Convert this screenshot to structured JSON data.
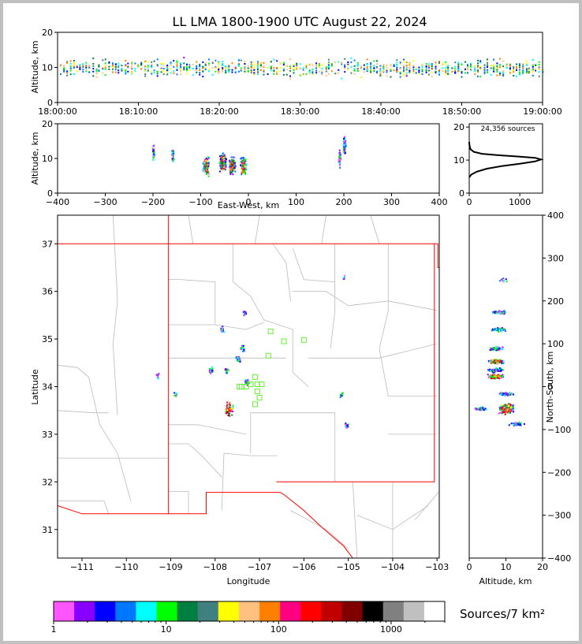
{
  "chart_data": {
    "type": "scatter",
    "title": "LL LMA 1800-1900 UTC August 22, 2024",
    "colors": {
      "bin_1": "#ff55ff",
      "bin_2": "#8800ff",
      "bin_3": "#0000ff",
      "bin_4": "#0077ff",
      "bin_5": "#00ffff",
      "bin_6": "#00ff00",
      "bin_7": "#008040",
      "bin_8": "#408080",
      "bin_9": "#ffff00",
      "bin_10": "#ffc080",
      "bin_11": "#ff8000",
      "bin_12": "#ff0080",
      "bin_13": "#ff0000",
      "bin_14": "#c00000",
      "bin_15": "#800000",
      "bin_16": "#000000",
      "bin_17": "#808080",
      "bin_18": "#c0c0c0",
      "bin_19": "#ffffff",
      "state_border": "#ff0000",
      "county_border": "#bbbbbb",
      "box_marker": "#66ee33"
    },
    "time_height": {
      "xlabel": "",
      "ylabel": "Altitude, km",
      "x_ticks": [
        "18:00:00",
        "18:10:00",
        "18:20:00",
        "18:30:00",
        "18:40:00",
        "18:50:00",
        "19:00:00"
      ],
      "y_ticks": [
        "0",
        "10",
        "20"
      ],
      "ylim": [
        0,
        20
      ]
    },
    "ew_height": {
      "xlabel": "East-West, km",
      "ylabel": "Altitude, km",
      "x_ticks": [
        "−400",
        "−300",
        "−200",
        "−100",
        "0",
        "100",
        "200",
        "300",
        "400"
      ],
      "y_ticks": [
        "0",
        "10",
        "20"
      ],
      "xlim": [
        -400,
        400
      ],
      "ylim": [
        0,
        20
      ],
      "clusters": [
        {
          "x": -200,
          "z": 12,
          "count": 40
        },
        {
          "x": -160,
          "z": 11,
          "count": 30
        },
        {
          "x": -90,
          "z": 8,
          "count": 120
        },
        {
          "x": -55,
          "z": 9,
          "count": 450
        },
        {
          "x": -35,
          "z": 8,
          "count": 200
        },
        {
          "x": -12,
          "z": 8,
          "count": 150
        },
        {
          "x": 190,
          "z": 10,
          "count": 40
        },
        {
          "x": 200,
          "z": 14,
          "count": 90
        }
      ]
    },
    "altitude_histogram": {
      "label": "24,356 sources",
      "x_ticks": [
        "0",
        "1000"
      ],
      "y_ticks": [
        "0",
        "10",
        "20"
      ],
      "xlim": [
        0,
        1450
      ],
      "ylim": [
        0,
        21
      ],
      "profile": [
        [
          0,
          4.8
        ],
        [
          40,
          5.6
        ],
        [
          150,
          6.5
        ],
        [
          350,
          7.4
        ],
        [
          650,
          8.2
        ],
        [
          1000,
          8.9
        ],
        [
          1300,
          9.6
        ],
        [
          1420,
          10.2
        ],
        [
          1300,
          10.7
        ],
        [
          950,
          11.1
        ],
        [
          550,
          11.5
        ],
        [
          250,
          11.9
        ],
        [
          90,
          12.5
        ],
        [
          25,
          13.3
        ],
        [
          5,
          14.5
        ],
        [
          0,
          15.5
        ]
      ]
    },
    "plan_view": {
      "xlabel": "Longitude",
      "ylabel": "Latitude",
      "x_ticks": [
        "−111",
        "−110",
        "−109",
        "−108",
        "−107",
        "−106",
        "−105",
        "−104",
        "−103"
      ],
      "y_ticks": [
        "31",
        "32",
        "33",
        "34",
        "35",
        "36",
        "37"
      ],
      "xlim": [
        -111.55,
        -102.95
      ],
      "ylim": [
        30.4,
        37.6
      ],
      "clusters": [
        {
          "lon": -109.3,
          "lat": 34.23,
          "count": 6
        },
        {
          "lon": -108.9,
          "lat": 33.85,
          "count": 8
        },
        {
          "lon": -108.1,
          "lat": 34.35,
          "count": 25
        },
        {
          "lon": -107.85,
          "lat": 35.22,
          "count": 20
        },
        {
          "lon": -107.75,
          "lat": 34.35,
          "count": 15
        },
        {
          "lon": -107.7,
          "lat": 33.55,
          "count": 70
        },
        {
          "lon": -107.5,
          "lat": 34.6,
          "count": 40
        },
        {
          "lon": -107.35,
          "lat": 35.57,
          "count": 12
        },
        {
          "lon": -107.3,
          "lat": 34.1,
          "count": 30
        },
        {
          "lon": -107.4,
          "lat": 34.82,
          "count": 15
        },
        {
          "lon": -105.1,
          "lat": 36.3,
          "count": 6
        },
        {
          "lon": -105.15,
          "lat": 33.85,
          "count": 8
        },
        {
          "lon": -105.05,
          "lat": 33.2,
          "count": 14
        }
      ],
      "boxes": [
        [
          -107.4,
          34.0
        ],
        [
          -107.3,
          34.0
        ],
        [
          -107.2,
          34.05
        ],
        [
          -107.1,
          34.2
        ],
        [
          -107.05,
          34.05
        ],
        [
          -106.95,
          34.05
        ],
        [
          -107.05,
          33.9
        ],
        [
          -107.0,
          33.77
        ],
        [
          -107.1,
          33.63
        ],
        [
          -106.8,
          34.65
        ],
        [
          -106.75,
          35.16
        ],
        [
          -106.45,
          34.95
        ],
        [
          -106.0,
          34.98
        ],
        [
          -107.45,
          34.0
        ]
      ]
    },
    "ns_height": {
      "xlabel": "Altitude, km",
      "ylabel": "North-South, km",
      "x_ticks": [
        "0",
        "10",
        "20"
      ],
      "y_ticks": [
        "−400",
        "−300",
        "−200",
        "−100",
        "0",
        "100",
        "200",
        "300",
        "400"
      ],
      "xlim": [
        0,
        20
      ],
      "ylim": [
        -400,
        400
      ],
      "clusters": [
        {
          "z": 9,
          "y": 250,
          "count": 8
        },
        {
          "z": 8,
          "y": 175,
          "count": 40
        },
        {
          "z": 8,
          "y": 135,
          "count": 40
        },
        {
          "z": 7,
          "y": 90,
          "count": 60
        },
        {
          "z": 7,
          "y": 60,
          "count": 150
        },
        {
          "z": 7,
          "y": 40,
          "count": 80
        },
        {
          "z": 7,
          "y": 25,
          "count": 120
        },
        {
          "z": 10,
          "y": -15,
          "count": 50
        },
        {
          "z": 10,
          "y": -50,
          "count": 600
        },
        {
          "z": 3,
          "y": -50,
          "count": 40
        },
        {
          "z": 13,
          "y": -85,
          "count": 40
        }
      ]
    },
    "colorbar": {
      "label": "Sources/7 km²",
      "ticks": [
        "1",
        "10",
        "100",
        "1000"
      ],
      "range": [
        1,
        3000
      ],
      "bins": 19
    }
  }
}
